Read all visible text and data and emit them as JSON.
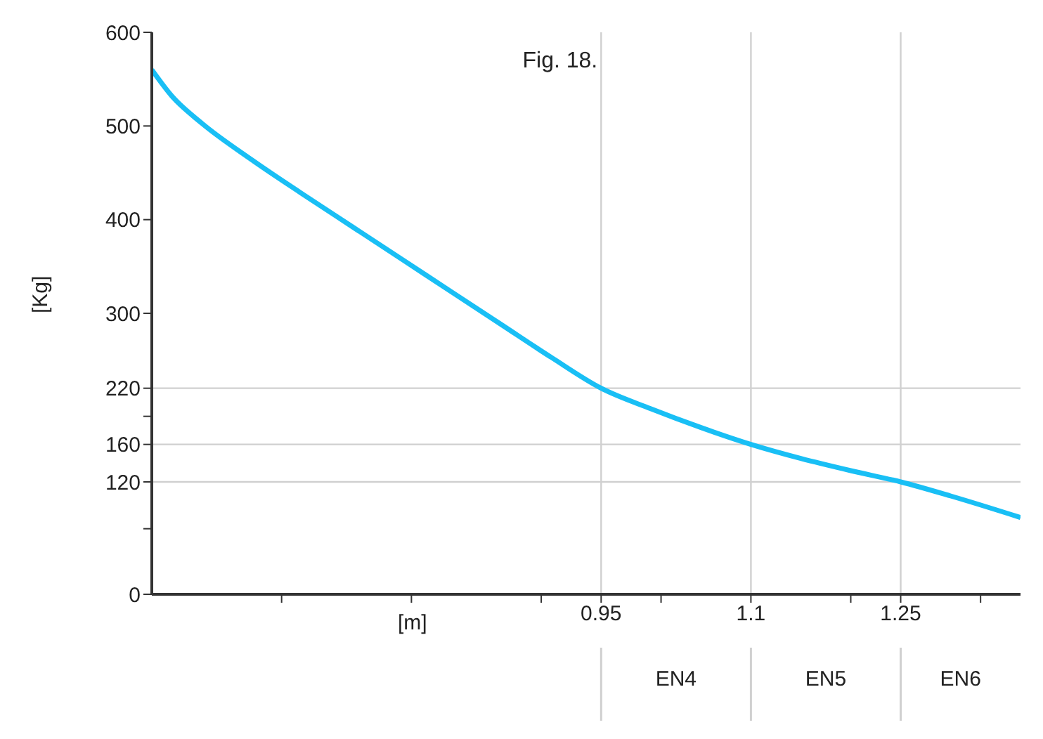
{
  "chart_data": {
    "type": "line",
    "title": "Fig. 18.",
    "xlabel": "[m]",
    "ylabel": "[Kg]",
    "x": [
      0.5,
      0.52,
      0.55,
      0.6,
      0.65,
      0.7,
      0.75,
      0.8,
      0.85,
      0.9,
      0.95,
      1.0,
      1.05,
      1.1,
      1.15,
      1.2,
      1.25,
      1.3,
      1.37
    ],
    "series": [
      {
        "color": "#19bff5",
        "values": [
          560,
          532,
          503,
          464,
          428,
          393,
          358,
          323,
          288,
          253,
          220,
          198,
          178,
          160,
          145,
          132,
          120,
          105,
          82
        ]
      }
    ],
    "xlim": [
      0.5,
      1.37
    ],
    "xticks": [
      {
        "value": 0.63,
        "label": null
      },
      {
        "value": 0.76,
        "label": null
      },
      {
        "value": 0.89,
        "label": null
      },
      0.95,
      {
        "value": 1.01,
        "label": null
      },
      1.1,
      {
        "value": 1.2,
        "label": null
      },
      1.25,
      {
        "value": 1.33,
        "label": null
      }
    ],
    "ylim": [
      0,
      600
    ],
    "yticks": [
      0,
      {
        "value": 70,
        "label": null
      },
      120,
      160,
      {
        "value": 190,
        "label": null
      },
      220,
      300,
      400,
      500,
      600
    ],
    "ref_lines": [
      {
        "axis": "y",
        "value": 220,
        "color": "#d0d0d0"
      },
      {
        "axis": "y",
        "value": 160,
        "color": "#d0d0d0"
      },
      {
        "axis": "y",
        "value": 120,
        "color": "#d0d0d0"
      },
      {
        "axis": "x",
        "value": 0.95,
        "color": "#d0d0d0"
      },
      {
        "axis": "x",
        "value": 1.1,
        "color": "#d0d0d0"
      },
      {
        "axis": "x",
        "value": 1.25,
        "color": "#d0d0d0"
      }
    ],
    "annotations": [
      "EN4",
      "EN5",
      "EN6"
    ],
    "marker": "none",
    "line_style": "solid"
  }
}
